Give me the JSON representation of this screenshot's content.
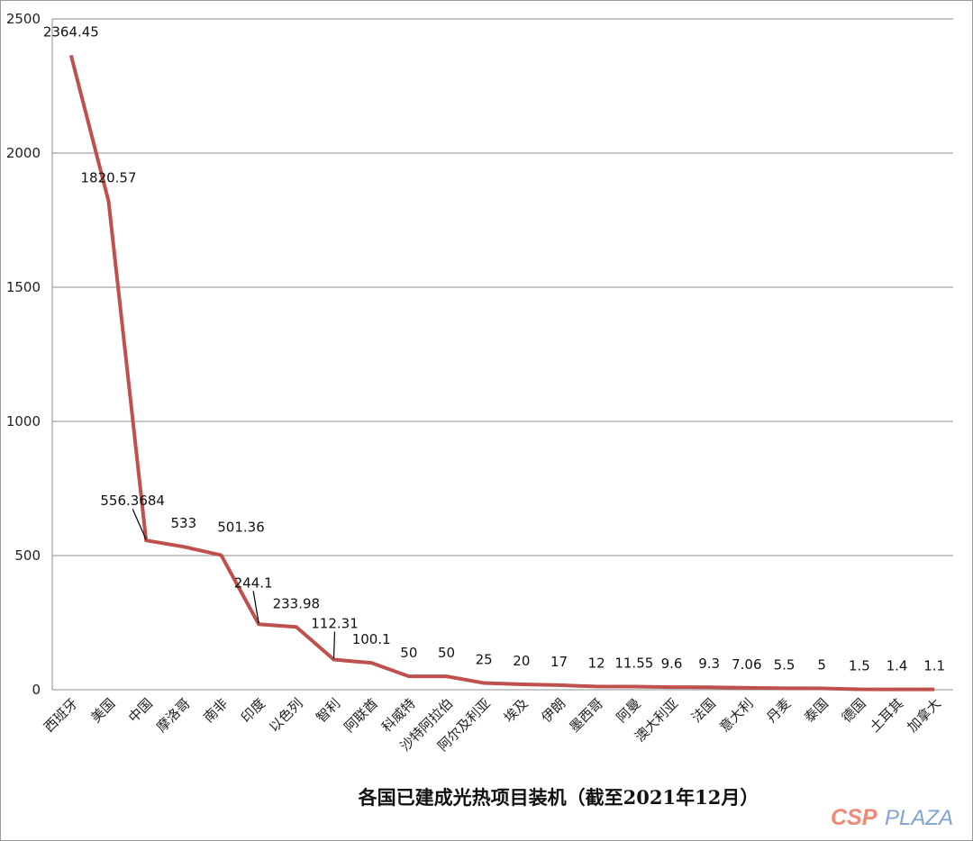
{
  "chart_data": {
    "type": "line",
    "title": "各国已建成光热项目装机（截至2021年12月）",
    "xlabel": "",
    "ylabel": "",
    "ylim": [
      0,
      2500
    ],
    "yticks": [
      0,
      500,
      1000,
      1500,
      2000,
      2500
    ],
    "grid": true,
    "line_color": "#c0504d",
    "categories": [
      "西班牙",
      "美国",
      "中国",
      "摩洛哥",
      "南非",
      "印度",
      "以色列",
      "智利",
      "阿联酋",
      "科威特",
      "沙特阿拉伯",
      "阿尔及利亚",
      "埃及",
      "伊朗",
      "墨西哥",
      "阿曼",
      "澳大利亚",
      "法国",
      "意大利",
      "丹麦",
      "泰国",
      "德国",
      "土耳其",
      "加拿大"
    ],
    "values": [
      2364.45,
      1820.57,
      556.3684,
      533,
      501.36,
      244.1,
      233.98,
      112.31,
      100.1,
      50,
      50,
      25,
      20,
      17,
      12,
      11.55,
      9.6,
      9.3,
      7.06,
      5.5,
      5,
      1.5,
      1.4,
      1.1
    ],
    "data_labels": [
      "2364.45",
      "1820.57",
      "556.3684",
      "533",
      "501.36",
      "244.1",
      "233.98",
      "112.31",
      "100.1",
      "50",
      "50",
      "25",
      "20",
      "17",
      "12",
      "11.55",
      "9.6",
      "9.3",
      "7.06",
      "5.5",
      "5",
      "1.5",
      "1.4",
      "1.1"
    ]
  },
  "watermark": {
    "logo_text_1": "CSP",
    "logo_text_2": "PLAZA"
  }
}
